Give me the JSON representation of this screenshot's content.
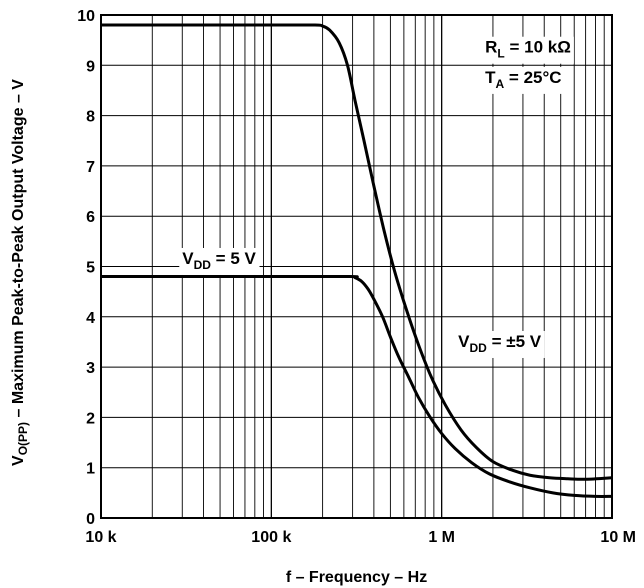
{
  "chart_data": {
    "type": "line",
    "x_scale": "log",
    "xlim": [
      10000,
      10000000
    ],
    "ylim": [
      0,
      10
    ],
    "grid": true,
    "xlabel": "f – Frequency – Hz",
    "ylabel": {
      "prefix": "V",
      "sub": "O(PP)",
      "suffix": " – Maximum Peak-to-Peak Output Voltage – V"
    },
    "x_ticks": [
      {
        "value": 10000,
        "label": "10 k"
      },
      {
        "value": 100000,
        "label": "100 k"
      },
      {
        "value": 1000000,
        "label": "1 M"
      },
      {
        "value": 10000000,
        "label": "10 M"
      }
    ],
    "y_ticks": [
      {
        "value": 0,
        "label": "0"
      },
      {
        "value": 1,
        "label": "1"
      },
      {
        "value": 2,
        "label": "2"
      },
      {
        "value": 3,
        "label": "3"
      },
      {
        "value": 4,
        "label": "4"
      },
      {
        "value": 5,
        "label": "5"
      },
      {
        "value": 6,
        "label": "6"
      },
      {
        "value": 7,
        "label": "7"
      },
      {
        "value": 8,
        "label": "8"
      },
      {
        "value": 9,
        "label": "9"
      },
      {
        "value": 10,
        "label": "10"
      }
    ],
    "series": [
      {
        "id": "vdd_pm5",
        "x": [
          10000,
          100000,
          180000,
          200000,
          220000,
          250000,
          280000,
          310000,
          350000,
          400000,
          460000,
          530000,
          620000,
          730000,
          870000,
          1050000,
          1300000,
          1600000,
          2000000,
          2600000,
          3300000,
          4300000,
          5500000,
          7000000,
          10000000
        ],
        "y": [
          9.8,
          9.8,
          9.8,
          9.78,
          9.7,
          9.45,
          9.0,
          8.3,
          7.5,
          6.6,
          5.7,
          4.9,
          4.15,
          3.45,
          2.8,
          2.25,
          1.75,
          1.4,
          1.12,
          0.95,
          0.85,
          0.8,
          0.78,
          0.77,
          0.8
        ]
      },
      {
        "id": "vdd_5",
        "x": [
          10000,
          100000,
          290000,
          310000,
          340000,
          370000,
          400000,
          450000,
          500000,
          560000,
          640000,
          730000,
          850000,
          1000000,
          1200000,
          1500000,
          1900000,
          2500000,
          3300000,
          4500000,
          6000000,
          8000000,
          10000000
        ],
        "y": [
          4.8,
          4.8,
          4.8,
          4.78,
          4.7,
          4.55,
          4.35,
          4.0,
          3.6,
          3.2,
          2.8,
          2.4,
          2.02,
          1.68,
          1.38,
          1.1,
          0.88,
          0.72,
          0.6,
          0.5,
          0.45,
          0.43,
          0.43
        ]
      }
    ],
    "annotations": [
      {
        "id": "rl",
        "main": "R",
        "sub": "L",
        "rest": " = 10 kΩ",
        "x": 1800000,
        "y": 9.25
      },
      {
        "id": "ta",
        "main": "T",
        "sub": "A",
        "rest": " = 25°C",
        "x": 1800000,
        "y": 8.65
      },
      {
        "id": "vdd5",
        "main": "V",
        "sub": "DD",
        "rest": " = 5 V",
        "x": 30000,
        "y": 5.05
      },
      {
        "id": "vddpm5",
        "main": "V",
        "sub": "DD",
        "rest": " = ±5 V",
        "x": 1250000,
        "y": 3.4
      }
    ]
  }
}
